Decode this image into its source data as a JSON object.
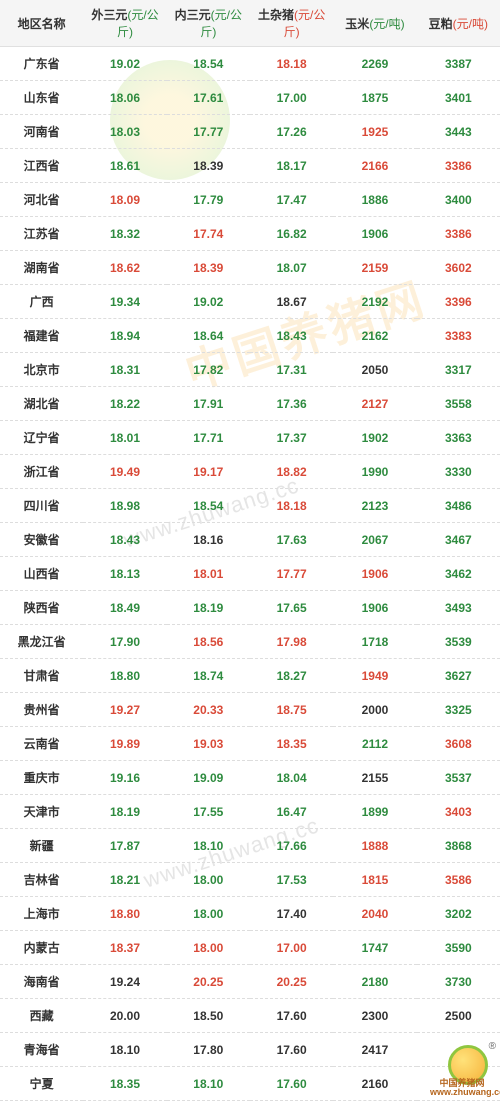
{
  "columns": [
    {
      "label": "地区名称",
      "unit": "",
      "unitColor": ""
    },
    {
      "label": "外三元",
      "unit": "(元/公斤)",
      "unitColor": "unit1"
    },
    {
      "label": "内三元",
      "unit": "(元/公斤)",
      "unitColor": "unit1"
    },
    {
      "label": "土杂猪",
      "unit": "(元/公斤)",
      "unitColor": "unit2"
    },
    {
      "label": "玉米",
      "unit": "(元/吨)",
      "unitColor": "unit1"
    },
    {
      "label": "豆粕",
      "unit": "(元/吨)",
      "unitColor": "unit2"
    }
  ],
  "rows": [
    {
      "region": "广东省",
      "c1": {
        "v": "19.02",
        "cls": "green"
      },
      "c2": {
        "v": "18.54",
        "cls": "green"
      },
      "c3": {
        "v": "18.18",
        "cls": "red"
      },
      "c4": {
        "v": "2269",
        "cls": "green"
      },
      "c5": {
        "v": "3387",
        "cls": "green"
      }
    },
    {
      "region": "山东省",
      "c1": {
        "v": "18.06",
        "cls": "green"
      },
      "c2": {
        "v": "17.61",
        "cls": "green"
      },
      "c3": {
        "v": "17.00",
        "cls": "green"
      },
      "c4": {
        "v": "1875",
        "cls": "green"
      },
      "c5": {
        "v": "3401",
        "cls": "green"
      }
    },
    {
      "region": "河南省",
      "c1": {
        "v": "18.03",
        "cls": "green"
      },
      "c2": {
        "v": "17.77",
        "cls": "green"
      },
      "c3": {
        "v": "17.26",
        "cls": "green"
      },
      "c4": {
        "v": "1925",
        "cls": "red"
      },
      "c5": {
        "v": "3443",
        "cls": "green"
      }
    },
    {
      "region": "江西省",
      "c1": {
        "v": "18.61",
        "cls": "green"
      },
      "c2": {
        "v": "18.39",
        "cls": "black"
      },
      "c3": {
        "v": "18.17",
        "cls": "green"
      },
      "c4": {
        "v": "2166",
        "cls": "red"
      },
      "c5": {
        "v": "3386",
        "cls": "red"
      }
    },
    {
      "region": "河北省",
      "c1": {
        "v": "18.09",
        "cls": "red"
      },
      "c2": {
        "v": "17.79",
        "cls": "green"
      },
      "c3": {
        "v": "17.47",
        "cls": "green"
      },
      "c4": {
        "v": "1886",
        "cls": "green"
      },
      "c5": {
        "v": "3400",
        "cls": "green"
      }
    },
    {
      "region": "江苏省",
      "c1": {
        "v": "18.32",
        "cls": "green"
      },
      "c2": {
        "v": "17.74",
        "cls": "red"
      },
      "c3": {
        "v": "16.82",
        "cls": "green"
      },
      "c4": {
        "v": "1906",
        "cls": "green"
      },
      "c5": {
        "v": "3386",
        "cls": "red"
      }
    },
    {
      "region": "湖南省",
      "c1": {
        "v": "18.62",
        "cls": "red"
      },
      "c2": {
        "v": "18.39",
        "cls": "red"
      },
      "c3": {
        "v": "18.07",
        "cls": "green"
      },
      "c4": {
        "v": "2159",
        "cls": "red"
      },
      "c5": {
        "v": "3602",
        "cls": "red"
      }
    },
    {
      "region": "广西",
      "c1": {
        "v": "19.34",
        "cls": "green"
      },
      "c2": {
        "v": "19.02",
        "cls": "green"
      },
      "c3": {
        "v": "18.67",
        "cls": "black"
      },
      "c4": {
        "v": "2192",
        "cls": "green"
      },
      "c5": {
        "v": "3396",
        "cls": "red"
      }
    },
    {
      "region": "福建省",
      "c1": {
        "v": "18.94",
        "cls": "green"
      },
      "c2": {
        "v": "18.64",
        "cls": "green"
      },
      "c3": {
        "v": "18.43",
        "cls": "green"
      },
      "c4": {
        "v": "2162",
        "cls": "green"
      },
      "c5": {
        "v": "3383",
        "cls": "red"
      }
    },
    {
      "region": "北京市",
      "c1": {
        "v": "18.31",
        "cls": "green"
      },
      "c2": {
        "v": "17.82",
        "cls": "green"
      },
      "c3": {
        "v": "17.31",
        "cls": "green"
      },
      "c4": {
        "v": "2050",
        "cls": "black"
      },
      "c5": {
        "v": "3317",
        "cls": "green"
      }
    },
    {
      "region": "湖北省",
      "c1": {
        "v": "18.22",
        "cls": "green"
      },
      "c2": {
        "v": "17.91",
        "cls": "green"
      },
      "c3": {
        "v": "17.36",
        "cls": "green"
      },
      "c4": {
        "v": "2127",
        "cls": "red"
      },
      "c5": {
        "v": "3558",
        "cls": "green"
      }
    },
    {
      "region": "辽宁省",
      "c1": {
        "v": "18.01",
        "cls": "green"
      },
      "c2": {
        "v": "17.71",
        "cls": "green"
      },
      "c3": {
        "v": "17.37",
        "cls": "green"
      },
      "c4": {
        "v": "1902",
        "cls": "green"
      },
      "c5": {
        "v": "3363",
        "cls": "green"
      }
    },
    {
      "region": "浙江省",
      "c1": {
        "v": "19.49",
        "cls": "red"
      },
      "c2": {
        "v": "19.17",
        "cls": "red"
      },
      "c3": {
        "v": "18.82",
        "cls": "red"
      },
      "c4": {
        "v": "1990",
        "cls": "green"
      },
      "c5": {
        "v": "3330",
        "cls": "green"
      }
    },
    {
      "region": "四川省",
      "c1": {
        "v": "18.98",
        "cls": "green"
      },
      "c2": {
        "v": "18.54",
        "cls": "green"
      },
      "c3": {
        "v": "18.18",
        "cls": "red"
      },
      "c4": {
        "v": "2123",
        "cls": "green"
      },
      "c5": {
        "v": "3486",
        "cls": "green"
      }
    },
    {
      "region": "安徽省",
      "c1": {
        "v": "18.43",
        "cls": "green"
      },
      "c2": {
        "v": "18.16",
        "cls": "black"
      },
      "c3": {
        "v": "17.63",
        "cls": "green"
      },
      "c4": {
        "v": "2067",
        "cls": "green"
      },
      "c5": {
        "v": "3467",
        "cls": "green"
      }
    },
    {
      "region": "山西省",
      "c1": {
        "v": "18.13",
        "cls": "green"
      },
      "c2": {
        "v": "18.01",
        "cls": "red"
      },
      "c3": {
        "v": "17.77",
        "cls": "red"
      },
      "c4": {
        "v": "1906",
        "cls": "red"
      },
      "c5": {
        "v": "3462",
        "cls": "green"
      }
    },
    {
      "region": "陕西省",
      "c1": {
        "v": "18.49",
        "cls": "green"
      },
      "c2": {
        "v": "18.19",
        "cls": "green"
      },
      "c3": {
        "v": "17.65",
        "cls": "green"
      },
      "c4": {
        "v": "1906",
        "cls": "green"
      },
      "c5": {
        "v": "3493",
        "cls": "green"
      }
    },
    {
      "region": "黑龙江省",
      "c1": {
        "v": "17.90",
        "cls": "green"
      },
      "c2": {
        "v": "18.56",
        "cls": "red"
      },
      "c3": {
        "v": "17.98",
        "cls": "red"
      },
      "c4": {
        "v": "1718",
        "cls": "green"
      },
      "c5": {
        "v": "3539",
        "cls": "green"
      }
    },
    {
      "region": "甘肃省",
      "c1": {
        "v": "18.80",
        "cls": "green"
      },
      "c2": {
        "v": "18.74",
        "cls": "green"
      },
      "c3": {
        "v": "18.27",
        "cls": "green"
      },
      "c4": {
        "v": "1949",
        "cls": "red"
      },
      "c5": {
        "v": "3627",
        "cls": "green"
      }
    },
    {
      "region": "贵州省",
      "c1": {
        "v": "19.27",
        "cls": "red"
      },
      "c2": {
        "v": "20.33",
        "cls": "red"
      },
      "c3": {
        "v": "18.75",
        "cls": "red"
      },
      "c4": {
        "v": "2000",
        "cls": "black"
      },
      "c5": {
        "v": "3325",
        "cls": "green"
      }
    },
    {
      "region": "云南省",
      "c1": {
        "v": "19.89",
        "cls": "red"
      },
      "c2": {
        "v": "19.03",
        "cls": "red"
      },
      "c3": {
        "v": "18.35",
        "cls": "red"
      },
      "c4": {
        "v": "2112",
        "cls": "green"
      },
      "c5": {
        "v": "3608",
        "cls": "red"
      }
    },
    {
      "region": "重庆市",
      "c1": {
        "v": "19.16",
        "cls": "green"
      },
      "c2": {
        "v": "19.09",
        "cls": "green"
      },
      "c3": {
        "v": "18.04",
        "cls": "green"
      },
      "c4": {
        "v": "2155",
        "cls": "black"
      },
      "c5": {
        "v": "3537",
        "cls": "green"
      }
    },
    {
      "region": "天津市",
      "c1": {
        "v": "18.19",
        "cls": "green"
      },
      "c2": {
        "v": "17.55",
        "cls": "green"
      },
      "c3": {
        "v": "16.47",
        "cls": "green"
      },
      "c4": {
        "v": "1899",
        "cls": "green"
      },
      "c5": {
        "v": "3403",
        "cls": "red"
      }
    },
    {
      "region": "新疆",
      "c1": {
        "v": "17.87",
        "cls": "green"
      },
      "c2": {
        "v": "18.10",
        "cls": "green"
      },
      "c3": {
        "v": "17.66",
        "cls": "green"
      },
      "c4": {
        "v": "1888",
        "cls": "red"
      },
      "c5": {
        "v": "3868",
        "cls": "green"
      }
    },
    {
      "region": "吉林省",
      "c1": {
        "v": "18.21",
        "cls": "green"
      },
      "c2": {
        "v": "18.00",
        "cls": "green"
      },
      "c3": {
        "v": "17.53",
        "cls": "green"
      },
      "c4": {
        "v": "1815",
        "cls": "red"
      },
      "c5": {
        "v": "3586",
        "cls": "red"
      }
    },
    {
      "region": "上海市",
      "c1": {
        "v": "18.80",
        "cls": "red"
      },
      "c2": {
        "v": "18.00",
        "cls": "green"
      },
      "c3": {
        "v": "17.40",
        "cls": "black"
      },
      "c4": {
        "v": "2040",
        "cls": "red"
      },
      "c5": {
        "v": "3202",
        "cls": "green"
      }
    },
    {
      "region": "内蒙古",
      "c1": {
        "v": "18.37",
        "cls": "red"
      },
      "c2": {
        "v": "18.00",
        "cls": "red"
      },
      "c3": {
        "v": "17.00",
        "cls": "red"
      },
      "c4": {
        "v": "1747",
        "cls": "green"
      },
      "c5": {
        "v": "3590",
        "cls": "green"
      }
    },
    {
      "region": "海南省",
      "c1": {
        "v": "19.24",
        "cls": "black"
      },
      "c2": {
        "v": "20.25",
        "cls": "red"
      },
      "c3": {
        "v": "20.25",
        "cls": "red"
      },
      "c4": {
        "v": "2180",
        "cls": "green"
      },
      "c5": {
        "v": "3730",
        "cls": "green"
      }
    },
    {
      "region": "西藏",
      "c1": {
        "v": "20.00",
        "cls": "black"
      },
      "c2": {
        "v": "18.50",
        "cls": "black"
      },
      "c3": {
        "v": "17.60",
        "cls": "black"
      },
      "c4": {
        "v": "2300",
        "cls": "black"
      },
      "c5": {
        "v": "2500",
        "cls": "black"
      }
    },
    {
      "region": "青海省",
      "c1": {
        "v": "18.10",
        "cls": "black"
      },
      "c2": {
        "v": "17.80",
        "cls": "black"
      },
      "c3": {
        "v": "17.60",
        "cls": "black"
      },
      "c4": {
        "v": "2417",
        "cls": "black"
      },
      "c5": {
        "v": "",
        "cls": ""
      }
    },
    {
      "region": "宁夏",
      "c1": {
        "v": "18.35",
        "cls": "green"
      },
      "c2": {
        "v": "18.10",
        "cls": "green"
      },
      "c3": {
        "v": "17.60",
        "cls": "green"
      },
      "c4": {
        "v": "2160",
        "cls": "black"
      },
      "c5": {
        "v": "",
        "cls": ""
      }
    }
  ],
  "watermark": {
    "brand": "中国养猪网",
    "url": "www.zhuwang.cc",
    "logo_caption_top": "中国养猪网",
    "logo_caption_url": "www.zhuwang.cc",
    "reg": "®"
  }
}
